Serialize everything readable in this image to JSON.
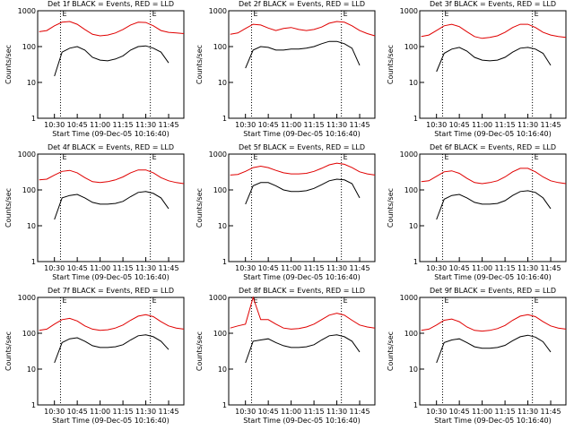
{
  "chart_data": [
    {
      "type": "line",
      "title": "Det 1f BLACK = Events, RED = LLD",
      "xlabel": "Start Time (09-Dec-05 10:16:40)",
      "ylabel": "Counts/sec",
      "log_y": true,
      "xlim": [
        "10:19",
        "11:55"
      ],
      "ylim": [
        1,
        1000
      ],
      "yticks": [
        1,
        10,
        100,
        1000
      ],
      "xticks": [
        "10:30",
        "10:45",
        "11:00",
        "11:15",
        "11:30",
        "11:45"
      ],
      "markers": [
        {
          "x": "10:34",
          "label": "E"
        },
        {
          "x": "11:33",
          "label": "E"
        }
      ],
      "x": [
        "10:20",
        "10:25",
        "10:30",
        "10:35",
        "10:40",
        "10:45",
        "10:50",
        "10:55",
        "11:00",
        "11:05",
        "11:10",
        "11:15",
        "11:20",
        "11:25",
        "11:30",
        "11:35",
        "11:40",
        "11:45",
        "11:50",
        "11:55"
      ],
      "series": [
        {
          "name": "LLD",
          "color": "#e00000",
          "values": [
            260,
            280,
            380,
            480,
            500,
            420,
            300,
            220,
            200,
            210,
            240,
            300,
            400,
            480,
            470,
            380,
            280,
            250,
            240,
            230
          ]
        },
        {
          "name": "Events",
          "color": "#000000",
          "values": [
            null,
            null,
            15,
            70,
            90,
            100,
            80,
            50,
            42,
            40,
            45,
            55,
            80,
            100,
            105,
            90,
            70,
            35,
            null,
            null
          ]
        }
      ]
    },
    {
      "type": "line",
      "title": "Det 2f BLACK = Events, RED = LLD",
      "xlabel": "Start Time (09-Dec-05 10:16:40)",
      "ylabel": "Counts/sec",
      "log_y": true,
      "xlim": [
        "10:19",
        "11:55"
      ],
      "ylim": [
        1,
        1000
      ],
      "yticks": [
        1,
        10,
        100,
        1000
      ],
      "xticks": [
        "10:30",
        "10:45",
        "11:00",
        "11:15",
        "11:30",
        "11:45"
      ],
      "markers": [
        {
          "x": "10:34",
          "label": "E"
        },
        {
          "x": "11:33",
          "label": "E"
        }
      ],
      "x": [
        "10:20",
        "10:25",
        "10:30",
        "10:35",
        "10:40",
        "10:45",
        "10:50",
        "10:55",
        "11:00",
        "11:05",
        "11:10",
        "11:15",
        "11:20",
        "11:25",
        "11:30",
        "11:35",
        "11:40",
        "11:45",
        "11:50",
        "11:55"
      ],
      "series": [
        {
          "name": "LLD",
          "color": "#e00000",
          "values": [
            220,
            240,
            320,
            420,
            400,
            330,
            280,
            320,
            340,
            300,
            280,
            300,
            350,
            450,
            500,
            480,
            380,
            280,
            230,
            200
          ]
        },
        {
          "name": "Events",
          "color": "#000000",
          "values": [
            null,
            null,
            25,
            80,
            100,
            95,
            80,
            80,
            85,
            85,
            90,
            100,
            120,
            140,
            140,
            120,
            90,
            30,
            null,
            null
          ]
        }
      ]
    },
    {
      "type": "line",
      "title": "Det 3f BLACK = Events, RED = LLD",
      "xlabel": "Start Time (09-Dec-05 10:16:40)",
      "ylabel": "Counts/sec",
      "log_y": true,
      "xlim": [
        "10:19",
        "11:55"
      ],
      "ylim": [
        1,
        1000
      ],
      "yticks": [
        1,
        10,
        100,
        1000
      ],
      "xticks": [
        "10:30",
        "10:45",
        "11:00",
        "11:15",
        "11:30",
        "11:45"
      ],
      "markers": [
        {
          "x": "10:34",
          "label": "E"
        },
        {
          "x": "11:33",
          "label": "E"
        }
      ],
      "x": [
        "10:20",
        "10:25",
        "10:30",
        "10:35",
        "10:40",
        "10:45",
        "10:50",
        "10:55",
        "11:00",
        "11:05",
        "11:10",
        "11:15",
        "11:20",
        "11:25",
        "11:30",
        "11:35",
        "11:40",
        "11:45",
        "11:50",
        "11:55"
      ],
      "series": [
        {
          "name": "LLD",
          "color": "#e00000",
          "values": [
            190,
            210,
            280,
            380,
            420,
            360,
            260,
            190,
            170,
            180,
            200,
            250,
            340,
            420,
            420,
            340,
            250,
            210,
            190,
            180
          ]
        },
        {
          "name": "Events",
          "color": "#000000",
          "values": [
            null,
            null,
            20,
            65,
            85,
            95,
            75,
            50,
            42,
            40,
            42,
            50,
            70,
            90,
            95,
            85,
            65,
            30,
            null,
            null
          ]
        }
      ]
    },
    {
      "type": "line",
      "title": "Det 4f BLACK = Events, RED = LLD",
      "xlabel": "Start Time (09-Dec-05 10:16:40)",
      "ylabel": "Counts/sec",
      "log_y": true,
      "xlim": [
        "10:19",
        "11:55"
      ],
      "ylim": [
        1,
        1000
      ],
      "yticks": [
        1,
        10,
        100,
        1000
      ],
      "xticks": [
        "10:30",
        "10:45",
        "11:00",
        "11:15",
        "11:30",
        "11:45"
      ],
      "markers": [
        {
          "x": "10:34",
          "label": "E"
        },
        {
          "x": "11:33",
          "label": "E"
        }
      ],
      "x": [
        "10:20",
        "10:25",
        "10:30",
        "10:35",
        "10:40",
        "10:45",
        "10:50",
        "10:55",
        "11:00",
        "11:05",
        "11:10",
        "11:15",
        "11:20",
        "11:25",
        "11:30",
        "11:35",
        "11:40",
        "11:45",
        "11:50",
        "11:55"
      ],
      "series": [
        {
          "name": "LLD",
          "color": "#e00000",
          "values": [
            190,
            200,
            260,
            330,
            350,
            300,
            220,
            170,
            160,
            170,
            190,
            230,
            300,
            360,
            360,
            300,
            220,
            180,
            160,
            150
          ]
        },
        {
          "name": "Events",
          "color": "#000000",
          "values": [
            null,
            null,
            15,
            60,
            70,
            75,
            60,
            45,
            40,
            40,
            42,
            48,
            65,
            85,
            90,
            80,
            60,
            30,
            null,
            null
          ]
        }
      ]
    },
    {
      "type": "line",
      "title": "Det 5f BLACK = Events, RED = LLD",
      "xlabel": "Start Time (09-Dec-05 10:16:40)",
      "ylabel": "Counts/sec",
      "log_y": true,
      "xlim": [
        "10:19",
        "11:55"
      ],
      "ylim": [
        1,
        1000
      ],
      "yticks": [
        1,
        10,
        100,
        1000
      ],
      "xticks": [
        "10:30",
        "10:45",
        "11:00",
        "11:15",
        "11:30",
        "11:45"
      ],
      "markers": [
        {
          "x": "10:34",
          "label": "E"
        },
        {
          "x": "11:33",
          "label": "E"
        }
      ],
      "x": [
        "10:20",
        "10:25",
        "10:30",
        "10:35",
        "10:40",
        "10:45",
        "10:50",
        "10:55",
        "11:00",
        "11:05",
        "11:10",
        "11:15",
        "11:20",
        "11:25",
        "11:30",
        "11:35",
        "11:40",
        "11:45",
        "11:50",
        "11:55"
      ],
      "series": [
        {
          "name": "LLD",
          "color": "#e00000",
          "values": [
            260,
            270,
            330,
            420,
            460,
            420,
            350,
            300,
            280,
            280,
            290,
            330,
            400,
            500,
            560,
            520,
            420,
            320,
            280,
            260
          ]
        },
        {
          "name": "Events",
          "color": "#000000",
          "values": [
            null,
            null,
            40,
            130,
            160,
            160,
            130,
            100,
            90,
            90,
            95,
            110,
            140,
            180,
            200,
            190,
            150,
            60,
            null,
            null
          ]
        }
      ]
    },
    {
      "type": "line",
      "title": "Det 6f BLACK = Events, RED = LLD",
      "xlabel": "Start Time (09-Dec-05 10:16:40)",
      "ylabel": "Counts/sec",
      "log_y": true,
      "xlim": [
        "10:19",
        "11:55"
      ],
      "ylim": [
        1,
        1000
      ],
      "yticks": [
        1,
        10,
        100,
        1000
      ],
      "xticks": [
        "10:30",
        "10:45",
        "11:00",
        "11:15",
        "11:30",
        "11:45"
      ],
      "markers": [
        {
          "x": "10:34",
          "label": "E"
        },
        {
          "x": "11:33",
          "label": "E"
        }
      ],
      "x": [
        "10:20",
        "10:25",
        "10:30",
        "10:35",
        "10:40",
        "10:45",
        "10:50",
        "10:55",
        "11:00",
        "11:05",
        "11:10",
        "11:15",
        "11:20",
        "11:25",
        "11:30",
        "11:35",
        "11:40",
        "11:45",
        "11:50",
        "11:55"
      ],
      "series": [
        {
          "name": "LLD",
          "color": "#e00000",
          "values": [
            170,
            180,
            240,
            320,
            340,
            290,
            210,
            160,
            150,
            160,
            180,
            230,
            320,
            400,
            400,
            320,
            230,
            180,
            160,
            150
          ]
        },
        {
          "name": "Events",
          "color": "#000000",
          "values": [
            null,
            null,
            15,
            55,
            70,
            75,
            60,
            45,
            40,
            40,
            42,
            50,
            70,
            90,
            95,
            85,
            60,
            30,
            null,
            null
          ]
        }
      ]
    },
    {
      "type": "line",
      "title": "Det 7f BLACK = Events, RED = LLD",
      "xlabel": "Start Time (09-Dec-05 10:16:40)",
      "ylabel": "Counts/sec",
      "log_y": true,
      "xlim": [
        "10:19",
        "11:55"
      ],
      "ylim": [
        1,
        1000
      ],
      "yticks": [
        1,
        10,
        100,
        1000
      ],
      "xticks": [
        "10:30",
        "10:45",
        "11:00",
        "11:15",
        "11:30",
        "11:45"
      ],
      "markers": [
        {
          "x": "10:34",
          "label": "E"
        },
        {
          "x": "11:33",
          "label": "E"
        }
      ],
      "x": [
        "10:20",
        "10:25",
        "10:30",
        "10:35",
        "10:40",
        "10:45",
        "10:50",
        "10:55",
        "11:00",
        "11:05",
        "11:10",
        "11:15",
        "11:20",
        "11:25",
        "11:30",
        "11:35",
        "11:40",
        "11:45",
        "11:50",
        "11:55"
      ],
      "series": [
        {
          "name": "LLD",
          "color": "#e00000",
          "values": [
            120,
            130,
            180,
            240,
            260,
            220,
            160,
            130,
            120,
            125,
            140,
            170,
            230,
            300,
            330,
            290,
            210,
            160,
            140,
            130
          ]
        },
        {
          "name": "Events",
          "color": "#000000",
          "values": [
            null,
            null,
            15,
            55,
            70,
            75,
            60,
            45,
            40,
            40,
            42,
            48,
            65,
            85,
            90,
            80,
            60,
            35,
            null,
            null
          ]
        }
      ]
    },
    {
      "type": "line",
      "title": "Det 8f BLACK = Events, RED = LLD",
      "xlabel": "Start Time (09-Dec-05 10:16:40)",
      "ylabel": "Counts/sec",
      "log_y": true,
      "xlim": [
        "10:19",
        "11:55"
      ],
      "ylim": [
        1,
        1000
      ],
      "yticks": [
        1,
        10,
        100,
        1000
      ],
      "xticks": [
        "10:30",
        "10:45",
        "11:00",
        "11:15",
        "11:30",
        "11:45"
      ],
      "markers": [
        {
          "x": "10:34",
          "label": "E"
        },
        {
          "x": "11:33",
          "label": "E"
        }
      ],
      "x": [
        "10:20",
        "10:25",
        "10:30",
        "10:35",
        "10:40",
        "10:45",
        "10:50",
        "10:55",
        "11:00",
        "11:05",
        "11:10",
        "11:15",
        "11:20",
        "11:25",
        "11:30",
        "11:35",
        "11:40",
        "11:45",
        "11:50",
        "11:55"
      ],
      "series": [
        {
          "name": "LLD",
          "color": "#e00000",
          "values": [
            140,
            160,
            180,
            1000,
            240,
            240,
            180,
            140,
            130,
            135,
            150,
            180,
            240,
            320,
            360,
            320,
            230,
            170,
            150,
            140
          ]
        },
        {
          "name": "Events",
          "color": "#000000",
          "values": [
            null,
            null,
            15,
            60,
            65,
            70,
            55,
            45,
            40,
            40,
            42,
            48,
            65,
            85,
            90,
            80,
            60,
            30,
            null,
            null
          ]
        }
      ]
    },
    {
      "type": "line",
      "title": "Det 9f BLACK = Events, RED = LLD",
      "xlabel": "Start Time (09-Dec-05 10:16:40)",
      "ylabel": "Counts/sec",
      "log_y": true,
      "xlim": [
        "10:19",
        "11:55"
      ],
      "ylim": [
        1,
        1000
      ],
      "yticks": [
        1,
        10,
        100,
        1000
      ],
      "xticks": [
        "10:30",
        "10:45",
        "11:00",
        "11:15",
        "11:30",
        "11:45"
      ],
      "markers": [
        {
          "x": "10:34",
          "label": "E"
        },
        {
          "x": "11:33",
          "label": "E"
        }
      ],
      "x": [
        "10:20",
        "10:25",
        "10:30",
        "10:35",
        "10:40",
        "10:45",
        "10:50",
        "10:55",
        "11:00",
        "11:05",
        "11:10",
        "11:15",
        "11:20",
        "11:25",
        "11:30",
        "11:35",
        "11:40",
        "11:45",
        "11:50",
        "11:55"
      ],
      "series": [
        {
          "name": "LLD",
          "color": "#e00000",
          "values": [
            120,
            130,
            170,
            230,
            250,
            210,
            150,
            120,
            115,
            120,
            135,
            165,
            230,
            300,
            330,
            290,
            210,
            160,
            140,
            130
          ]
        },
        {
          "name": "Events",
          "color": "#000000",
          "values": [
            null,
            null,
            15,
            55,
            65,
            70,
            55,
            42,
            38,
            38,
            40,
            46,
            62,
            80,
            88,
            78,
            58,
            30,
            null,
            null
          ]
        }
      ]
    }
  ]
}
